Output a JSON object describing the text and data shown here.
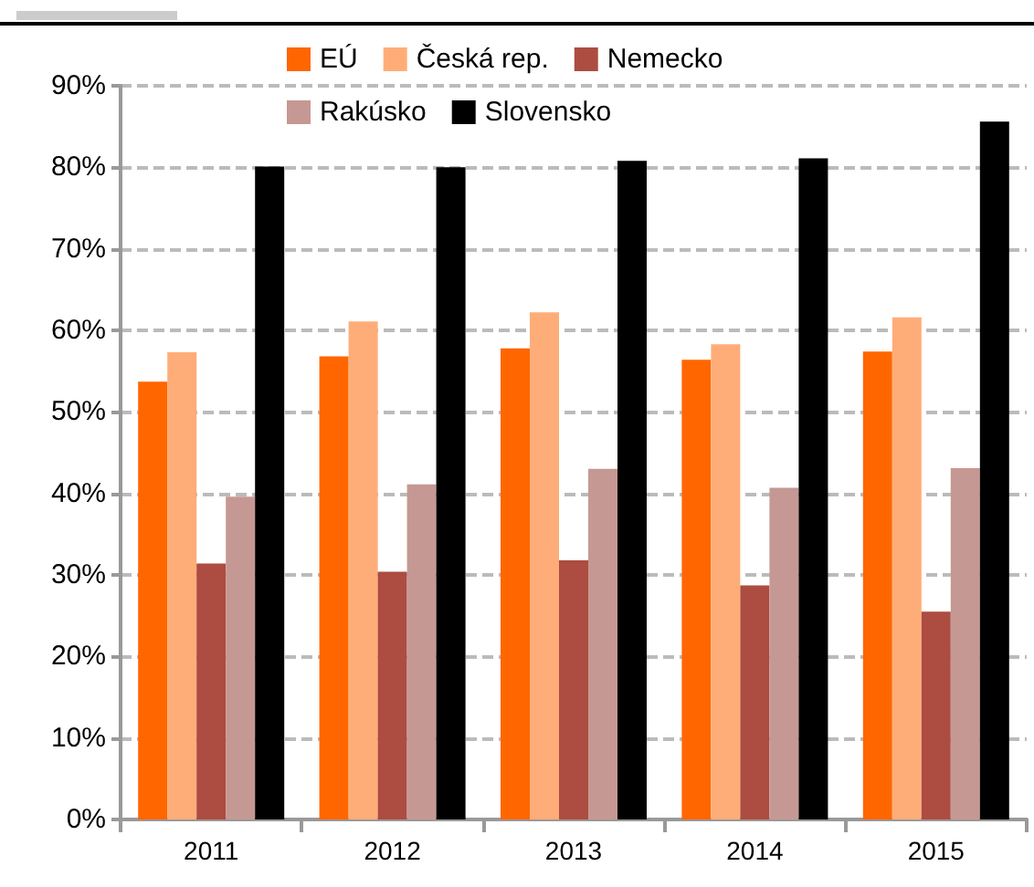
{
  "chart_data": {
    "type": "bar",
    "categories": [
      "2011",
      "2012",
      "2013",
      "2014",
      "2015"
    ],
    "series": [
      {
        "name": "EÚ",
        "color": "#ff6600",
        "values": [
          53.7,
          56.8,
          57.8,
          56.4,
          57.4
        ]
      },
      {
        "name": "Česká rep.",
        "color": "#ffad78",
        "values": [
          57.3,
          61.1,
          62.2,
          58.3,
          61.6
        ]
      },
      {
        "name": "Nemecko",
        "color": "#ad4c40",
        "values": [
          31.4,
          30.4,
          31.8,
          28.7,
          25.5
        ]
      },
      {
        "name": "Rakúsko",
        "color": "#c69893",
        "values": [
          39.6,
          41.1,
          43.0,
          40.7,
          43.1
        ]
      },
      {
        "name": "Slovensko",
        "color": "#000000",
        "values": [
          80.1,
          80.0,
          80.8,
          81.1,
          85.6
        ]
      }
    ],
    "ylim": [
      0,
      90
    ],
    "yticks": [
      {
        "value": 0,
        "label": "0%"
      },
      {
        "value": 10,
        "label": "10%"
      },
      {
        "value": 20,
        "label": "20%"
      },
      {
        "value": 30,
        "label": "30%"
      },
      {
        "value": 40,
        "label": "40%"
      },
      {
        "value": 50,
        "label": "50%"
      },
      {
        "value": 60,
        "label": "60%"
      },
      {
        "value": 70,
        "label": "70%"
      },
      {
        "value": 80,
        "label": "80%"
      },
      {
        "value": 90,
        "label": "90%"
      }
    ],
    "grid": "y",
    "legend": "top"
  }
}
